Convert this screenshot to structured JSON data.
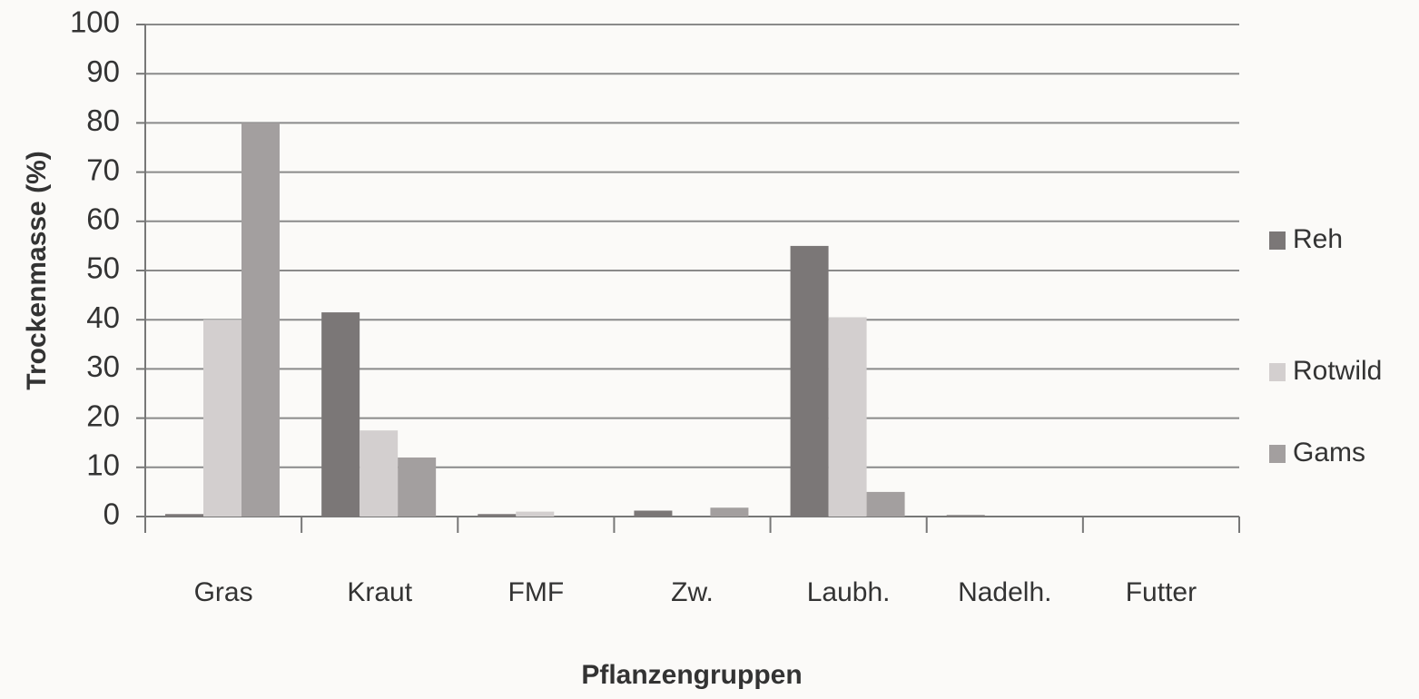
{
  "chart_data": {
    "type": "bar",
    "y_label": "Trockenmasse (%)",
    "x_label": "Pflanzengruppen",
    "categories": [
      "Gras",
      "Kraut",
      "FMF",
      "Zw.",
      "Laubh.",
      "Nadelh.",
      "Futter"
    ],
    "series": [
      {
        "name": "Reh",
        "color": "#7b7777",
        "values": [
          0.5,
          41.5,
          0.5,
          1.2,
          55,
          0.3,
          0
        ]
      },
      {
        "name": "Rotwild",
        "color": "#d3cfcf",
        "values": [
          40,
          17.5,
          1,
          0,
          40.5,
          0,
          0
        ]
      },
      {
        "name": "Gams",
        "color": "#a39f9f",
        "values": [
          80,
          12,
          0,
          1.8,
          5,
          0,
          0
        ]
      }
    ],
    "ylim": [
      0,
      100
    ],
    "yticks": [
      0,
      10,
      20,
      30,
      40,
      50,
      60,
      70,
      80,
      90,
      100
    ],
    "grid": true,
    "legend": "right"
  }
}
